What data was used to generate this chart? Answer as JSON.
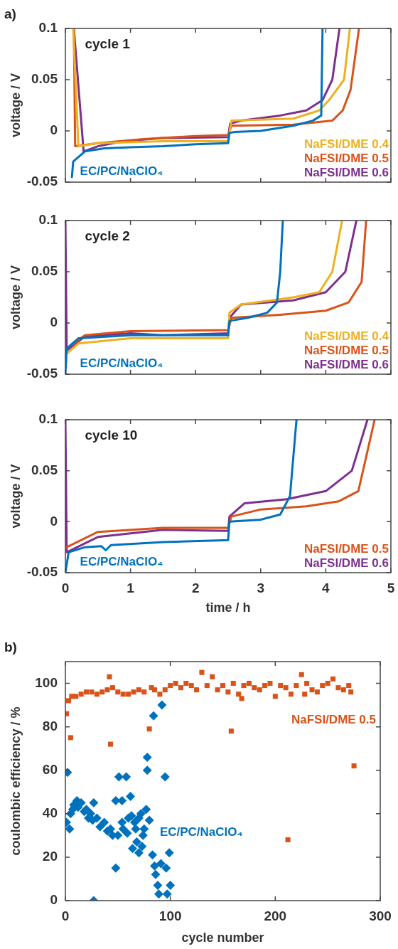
{
  "chart_data": [
    {
      "type": "line",
      "title": "cycle 1",
      "annotations": [
        "a)"
      ],
      "ylabel": "voltage / V",
      "xlim": [
        0,
        5
      ],
      "xticks": [
        0,
        1,
        2,
        3,
        4,
        5
      ],
      "ylim": [
        -0.05,
        0.1
      ],
      "yticks": [
        -0.05,
        0,
        0.05,
        0.1
      ],
      "tick_labels": "y",
      "series": [
        {
          "name": "EC/PC/NaClO₄",
          "color": "#0072bd",
          "x": [
            0.1,
            0.12,
            0.3,
            0.6,
            1,
            1.5,
            2,
            2.5,
            2.52,
            2.6,
            3,
            3.5,
            3.8,
            3.93,
            3.95
          ],
          "values": [
            -0.045,
            -0.03,
            -0.02,
            -0.017,
            -0.016,
            -0.015,
            -0.013,
            -0.012,
            -0.002,
            -0.001,
            0,
            0.005,
            0.01,
            0.015,
            0.1
          ]
        },
        {
          "name": "NaFSI/DME 0.4",
          "color": "#edb120",
          "x": [
            0.12,
            0.2,
            0.5,
            1.5,
            2.5,
            2.55,
            3.5,
            3.9,
            4.05,
            4.28,
            4.37
          ],
          "values": [
            0.1,
            -0.015,
            -0.012,
            -0.01,
            -0.01,
            0.01,
            0.012,
            0.02,
            0.03,
            0.05,
            0.1
          ]
        },
        {
          "name": "NaFSI/DME 0.5",
          "color": "#d95319",
          "x": [
            0.13,
            0.15,
            0.5,
            1.2,
            2,
            2.5,
            2.55,
            3.5,
            4.1,
            4.26,
            4.38,
            4.51
          ],
          "values": [
            0.1,
            -0.015,
            -0.012,
            -0.008,
            -0.005,
            -0.004,
            0.005,
            0.006,
            0.01,
            0.02,
            0.04,
            0.1
          ]
        },
        {
          "name": "NaFSI/DME 0.6",
          "color": "#7e2f8e",
          "x": [
            0.13,
            0.28,
            0.5,
            0.9,
            1.5,
            2.5,
            2.53,
            2.7,
            3.3,
            3.7,
            3.95,
            4.1,
            4.21
          ],
          "values": [
            0.1,
            -0.02,
            -0.015,
            -0.01,
            -0.007,
            -0.006,
            0.007,
            0.01,
            0.015,
            0.02,
            0.03,
            0.05,
            0.1
          ]
        }
      ]
    },
    {
      "type": "line",
      "title": "cycle 2",
      "ylabel": "voltage / V",
      "xlim": [
        0,
        5
      ],
      "xticks": [
        0,
        1,
        2,
        3,
        4,
        5
      ],
      "ylim": [
        -0.05,
        0.1
      ],
      "yticks": [
        -0.05,
        0,
        0.05,
        0.1
      ],
      "tick_labels": "y",
      "series": [
        {
          "name": "EC/PC/NaClO₄",
          "color": "#0072bd",
          "x": [
            0,
            0.02,
            0.2,
            1,
            2.5,
            2.52,
            2.8,
            3.1,
            3.25,
            3.3,
            3.34
          ],
          "values": [
            -0.05,
            -0.025,
            -0.015,
            -0.012,
            -0.012,
            0.002,
            0.005,
            0.01,
            0.02,
            0.05,
            0.1
          ]
        },
        {
          "name": "NaFSI/DME 0.4",
          "color": "#edb120",
          "x": [
            0.02,
            0.2,
            1,
            2.5,
            2.52,
            2.7,
            3.5,
            3.9,
            4.1,
            4.25
          ],
          "values": [
            -0.03,
            -0.02,
            -0.015,
            -0.015,
            0.01,
            0.018,
            0.025,
            0.03,
            0.05,
            0.1
          ]
        },
        {
          "name": "NaFSI/DME 0.5",
          "color": "#d95319",
          "x": [
            0.02,
            0.3,
            1,
            2.5,
            2.55,
            3.3,
            4,
            4.35,
            4.55,
            4.62
          ],
          "values": [
            -0.025,
            -0.012,
            -0.008,
            -0.007,
            0.005,
            0.008,
            0.012,
            0.02,
            0.04,
            0.1
          ]
        },
        {
          "name": "NaFSI/DME 0.6",
          "color": "#7e2f8e",
          "x": [
            0,
            0.02,
            0.3,
            1,
            1.5,
            2.5,
            2.52,
            2.7,
            3.5,
            4,
            4.3,
            4.47
          ],
          "values": [
            0.1,
            -0.027,
            -0.013,
            -0.01,
            -0.012,
            -0.01,
            0.005,
            0.018,
            0.022,
            0.03,
            0.05,
            0.1
          ]
        }
      ]
    },
    {
      "type": "line",
      "title": "cycle 10",
      "xlabel": "time / h",
      "ylabel": "voltage / V",
      "xlim": [
        0,
        5
      ],
      "xticks": [
        0,
        1,
        2,
        3,
        4,
        5
      ],
      "ylim": [
        -0.05,
        0.1
      ],
      "yticks": [
        -0.05,
        0,
        0.05,
        0.1
      ],
      "series": [
        {
          "name": "EC/PC/NaClO₄",
          "color": "#0072bd",
          "x": [
            0,
            0.05,
            0.3,
            0.55,
            0.62,
            0.7,
            1.5,
            2.5,
            2.52,
            3,
            3.3,
            3.45,
            3.55
          ],
          "values": [
            -0.05,
            -0.03,
            -0.025,
            -0.024,
            -0.028,
            -0.023,
            -0.02,
            -0.018,
            0,
            0.002,
            0.007,
            0.025,
            0.1
          ]
        },
        {
          "name": "NaFSI/DME 0.5",
          "color": "#d95319",
          "x": [
            0.02,
            0.5,
            1.5,
            2.5,
            2.55,
            3,
            3.7,
            4.2,
            4.5,
            4.75
          ],
          "values": [
            -0.025,
            -0.01,
            -0.006,
            -0.006,
            0.005,
            0.012,
            0.015,
            0.02,
            0.03,
            0.1
          ]
        },
        {
          "name": "NaFSI/DME 0.6",
          "color": "#7e2f8e",
          "x": [
            0,
            0.02,
            0.5,
            1.5,
            2.5,
            2.52,
            2.75,
            3.4,
            4,
            4.4,
            4.64
          ],
          "values": [
            0.1,
            -0.03,
            -0.015,
            -0.008,
            -0.009,
            0.005,
            0.018,
            0.022,
            0.03,
            0.05,
            0.1
          ]
        }
      ]
    },
    {
      "type": "scatter",
      "annotations": [
        "b)"
      ],
      "xlabel": "cycle number",
      "ylabel": "coulombic efficiency / %",
      "xlim": [
        0,
        300
      ],
      "xticks": [
        0,
        100,
        200,
        300
      ],
      "ylim": [
        0,
        110
      ],
      "yticks": [
        0,
        20,
        40,
        60,
        80,
        100
      ],
      "series": [
        {
          "name": "EC/PC/NaClO₄",
          "color": "#0072bd",
          "marker": "diamond",
          "x": [
            1,
            2,
            4,
            5,
            7,
            8,
            11,
            12,
            15,
            18,
            20,
            22,
            24,
            26,
            27,
            27,
            30,
            33,
            37,
            40,
            43,
            45,
            48,
            48,
            50,
            51,
            54,
            54,
            55,
            58,
            59,
            60,
            62,
            63,
            64,
            66,
            67,
            68,
            70,
            70,
            72,
            73,
            74,
            75,
            77,
            78,
            78,
            80,
            83,
            84,
            85,
            86,
            88,
            89,
            91,
            92,
            95,
            96,
            97,
            99,
            100
          ],
          "values": [
            36,
            59,
            33,
            40,
            42,
            44,
            46,
            43,
            45,
            41,
            42,
            38,
            40,
            37,
            45,
            0,
            38,
            34,
            36,
            32,
            33,
            30,
            46,
            15,
            30,
            57,
            46,
            36,
            33,
            57,
            31,
            38,
            48,
            39,
            24,
            36,
            33,
            27,
            22,
            38,
            40,
            25,
            30,
            33,
            42,
            60,
            66,
            37,
            21,
            85,
            16,
            12,
            7,
            3,
            17,
            90,
            57,
            15,
            3,
            22,
            7
          ]
        },
        {
          "name": "NaFSI/DME 0.5",
          "color": "#d95319",
          "marker": "square",
          "x": [
            1,
            3,
            5,
            6,
            10,
            15,
            20,
            25,
            30,
            35,
            40,
            42,
            43,
            45,
            50,
            55,
            60,
            65,
            70,
            75,
            80,
            82,
            85,
            90,
            95,
            100,
            105,
            110,
            115,
            120,
            125,
            130,
            135,
            140,
            145,
            150,
            155,
            158,
            160,
            165,
            168,
            170,
            175,
            180,
            185,
            190,
            195,
            200,
            205,
            210,
            212,
            215,
            220,
            225,
            228,
            230,
            235,
            240,
            245,
            250,
            255,
            260,
            265,
            270,
            272,
            275
          ],
          "values": [
            86,
            92,
            75,
            94,
            94,
            95,
            96,
            96,
            95,
            96,
            97,
            103,
            72,
            98,
            96,
            95,
            95,
            96,
            97,
            96,
            79,
            98,
            97,
            95,
            97,
            99,
            100,
            98,
            100,
            99,
            97,
            105,
            99,
            103,
            97,
            99,
            96,
            78,
            100,
            95,
            93,
            99,
            100,
            98,
            97,
            99,
            100,
            94,
            99,
            98,
            28,
            95,
            99,
            104,
            95,
            100,
            97,
            96,
            99,
            100,
            102,
            98,
            97,
            99,
            96,
            62
          ]
        }
      ]
    }
  ]
}
